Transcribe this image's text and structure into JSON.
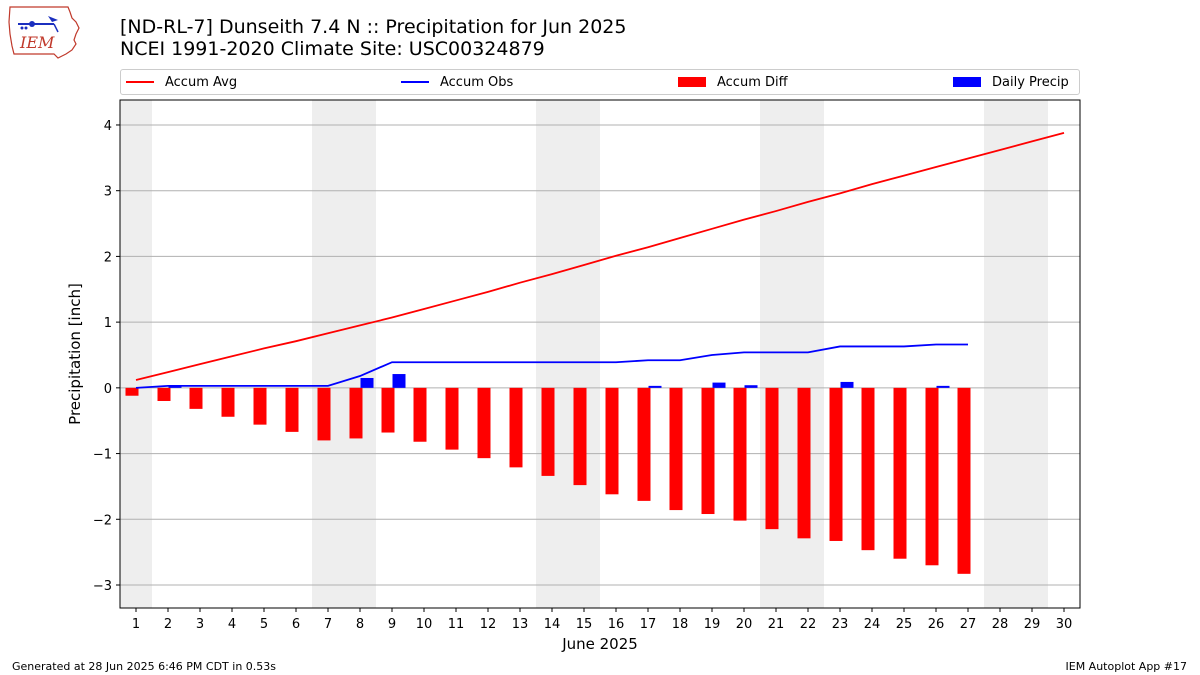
{
  "header": {
    "logo_text": "IEM",
    "title_line1": "[ND-RL-7] Dunseith 7.4 N :: Precipitation for Jun 2025",
    "title_line2": "NCEI 1991-2020 Climate Site: USC00324879"
  },
  "footer": {
    "generated": "Generated at 28 Jun 2025 6:46 PM CDT in 0.53s",
    "app": "IEM Autoplot App #17"
  },
  "colors": {
    "accum_avg": "#ff0000",
    "accum_obs": "#0000ff",
    "accum_diff": "#ff0000",
    "daily_precip": "#0000ff",
    "weekend_band": "#eeeeee",
    "grid": "#b0b0b0"
  },
  "chart_data": {
    "type": "bar",
    "title": "[ND-RL-7] Dunseith 7.4 N :: Precipitation for Jun 2025",
    "subtitle": "NCEI 1991-2020 Climate Site: USC00324879",
    "xlabel": "June 2025",
    "ylabel": "Precipitation [inch]",
    "ylim": [
      -3.35,
      4.38
    ],
    "yticks": [
      -3,
      -2,
      -1,
      0,
      1,
      2,
      3,
      4
    ],
    "ytick_labels": [
      "−3",
      "−2",
      "−1",
      "0",
      "1",
      "2",
      "3",
      "4"
    ],
    "x_categories": [
      "1",
      "2",
      "3",
      "4",
      "5",
      "6",
      "7",
      "8",
      "9",
      "10",
      "11",
      "12",
      "13",
      "14",
      "15",
      "16",
      "17",
      "18",
      "19",
      "20",
      "21",
      "22",
      "23",
      "24",
      "25",
      "26",
      "27",
      "28",
      "29",
      "30"
    ],
    "grid": "horizontal",
    "legend_position": "top",
    "weekend_days": [
      1,
      7,
      8,
      14,
      15,
      21,
      22,
      28,
      29
    ],
    "series": [
      {
        "name": "Accum Avg",
        "kind": "line",
        "values": [
          0.12,
          0.24,
          0.36,
          0.48,
          0.6,
          0.71,
          0.83,
          0.95,
          1.07,
          1.2,
          1.33,
          1.46,
          1.6,
          1.73,
          1.87,
          2.01,
          2.14,
          2.28,
          2.42,
          2.56,
          2.69,
          2.83,
          2.96,
          3.1,
          3.23,
          3.36,
          3.49,
          3.62,
          3.75,
          3.88
        ]
      },
      {
        "name": "Accum Obs",
        "kind": "line",
        "values": [
          0.0,
          0.03,
          0.03,
          0.03,
          0.03,
          0.03,
          0.03,
          0.18,
          0.39,
          0.39,
          0.39,
          0.39,
          0.39,
          0.39,
          0.39,
          0.39,
          0.42,
          0.42,
          0.5,
          0.54,
          0.54,
          0.54,
          0.63,
          0.63,
          0.63,
          0.66,
          0.66
        ]
      },
      {
        "name": "Accum Diff",
        "kind": "bar",
        "values": [
          -0.12,
          -0.2,
          -0.32,
          -0.44,
          -0.56,
          -0.67,
          -0.8,
          -0.77,
          -0.68,
          -0.82,
          -0.94,
          -1.07,
          -1.21,
          -1.34,
          -1.48,
          -1.62,
          -1.72,
          -1.86,
          -1.92,
          -2.02,
          -2.15,
          -2.29,
          -2.33,
          -2.47,
          -2.6,
          -2.7,
          -2.83
        ]
      },
      {
        "name": "Daily Precip",
        "kind": "bar",
        "values": [
          0.0,
          0.03,
          0.0,
          0.0,
          0.0,
          0.0,
          0.0,
          0.15,
          0.21,
          0.0,
          0.0,
          0.0,
          0.0,
          0.0,
          0.0,
          0.0,
          0.03,
          0.0,
          0.08,
          0.04,
          0.0,
          0.0,
          0.09,
          0.0,
          0.0,
          0.03,
          0.0
        ]
      }
    ]
  }
}
